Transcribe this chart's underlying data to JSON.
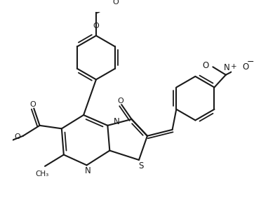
{
  "bg_color": "#ffffff",
  "line_color": "#1a1a1a",
  "lw": 1.5,
  "lw_d": 1.3,
  "figsize": [
    3.62,
    3.15
  ],
  "dpi": 100,
  "xlim": [
    -1.0,
    9.5
  ],
  "ylim": [
    -0.5,
    9.5
  ]
}
